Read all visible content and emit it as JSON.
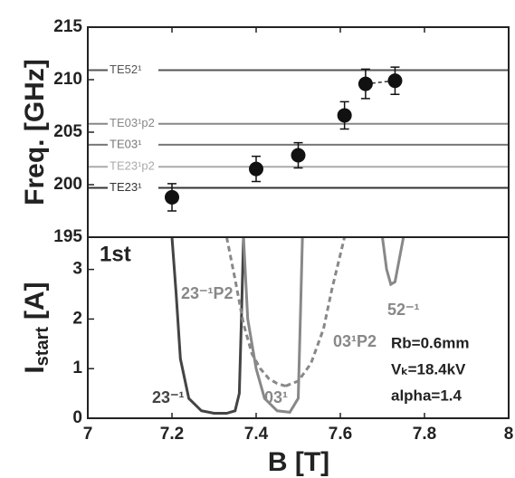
{
  "chart_data": [
    {
      "type": "scatter",
      "ylabel": "Freq. [GHz]",
      "xlim": [
        7,
        8
      ],
      "ylim": [
        195,
        215
      ],
      "yticks": [
        195,
        200,
        205,
        210,
        215
      ],
      "x": [
        7.2,
        7.4,
        7.5,
        7.61,
        7.66,
        7.73
      ],
      "values": [
        198.8,
        201.5,
        202.8,
        206.6,
        209.6,
        209.9
      ],
      "errors": [
        1.3,
        1.2,
        1.2,
        1.3,
        1.4,
        1.3
      ],
      "color": "#111",
      "hlines": [
        {
          "label": "TE52¹",
          "value": 210.9,
          "color": "#555"
        },
        {
          "label": "TE03¹p2",
          "value": 205.8,
          "color": "#888"
        },
        {
          "label": "TE03¹",
          "value": 203.8,
          "color": "#777"
        },
        {
          "label": "TE23¹p2",
          "value": 201.7,
          "color": "#aaa"
        },
        {
          "label": "TE23¹",
          "value": 199.7,
          "color": "#333"
        }
      ]
    },
    {
      "type": "line",
      "xlabel": "B [T]",
      "ylabel": [
        "I",
        "start",
        "[A]"
      ],
      "xlim": [
        7,
        8
      ],
      "xticks": [
        7,
        7.2,
        7.4,
        7.6,
        7.8,
        8
      ],
      "ylim": [
        0,
        3.65
      ],
      "yticks": [
        0,
        1,
        2,
        3
      ],
      "annotations": [
        "1st",
        "Rb=0.6mm",
        "Vₖ=18.4kV",
        "alpha=1.4"
      ],
      "series": [
        {
          "name": "23⁻¹",
          "color": "#444",
          "dashed": false,
          "x": [
            7.2,
            7.21,
            7.22,
            7.24,
            7.27,
            7.3,
            7.33,
            7.35,
            7.36,
            7.365,
            7.37
          ],
          "values": [
            3.65,
            2.5,
            1.2,
            0.4,
            0.15,
            0.1,
            0.1,
            0.15,
            0.5,
            2,
            3.65
          ]
        },
        {
          "name": "23⁻¹P2",
          "color": "#888",
          "dashed": true,
          "x": [
            7.33,
            7.35,
            7.37,
            7.39,
            7.41,
            7.43,
            7.45,
            7.47
          ],
          "values": [
            3.65,
            2.8,
            1.9,
            1.3,
            1.0,
            0.8,
            0.7,
            0.65
          ]
        },
        {
          "name": "03¹",
          "color": "#888",
          "dashed": false,
          "x": [
            7.37,
            7.38,
            7.4,
            7.42,
            7.45,
            7.48,
            7.5,
            7.505,
            7.51
          ],
          "values": [
            3.65,
            2.0,
            1.0,
            0.4,
            0.15,
            0.12,
            0.4,
            2,
            3.65
          ]
        },
        {
          "name": "03¹P2",
          "color": "#888",
          "dashed": true,
          "x": [
            7.47,
            7.5,
            7.53,
            7.56,
            7.58,
            7.6,
            7.61
          ],
          "values": [
            0.65,
            0.75,
            1.1,
            1.8,
            2.6,
            3.3,
            3.65
          ]
        },
        {
          "name": "52⁻¹",
          "color": "#888",
          "dashed": false,
          "x": [
            7.7,
            7.71,
            7.72,
            7.73,
            7.74,
            7.75
          ],
          "values": [
            3.65,
            3.0,
            2.7,
            2.75,
            3.2,
            3.65
          ]
        }
      ]
    }
  ]
}
